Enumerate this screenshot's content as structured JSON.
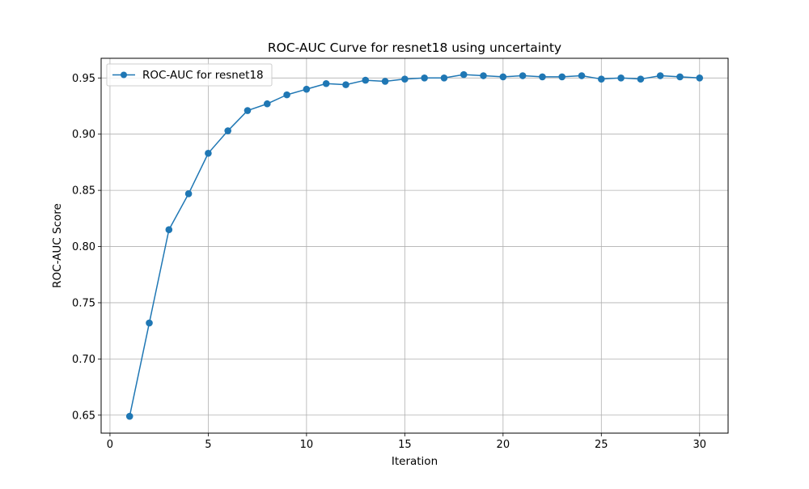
{
  "chart_data": {
    "type": "line",
    "title": "ROC-AUC Curve for resnet18 using uncertainty",
    "xlabel": "Iteration",
    "ylabel": "ROC-AUC Score",
    "xlim": [
      -0.45,
      31.45
    ],
    "ylim": [
      0.634,
      0.9675
    ],
    "xticks": [
      0,
      5,
      10,
      15,
      20,
      25,
      30
    ],
    "xtick_labels": [
      "0",
      "5",
      "10",
      "15",
      "20",
      "25",
      "30"
    ],
    "yticks": [
      0.65,
      0.7,
      0.75,
      0.8,
      0.85,
      0.9,
      0.95
    ],
    "ytick_labels": [
      "0.65",
      "0.70",
      "0.75",
      "0.80",
      "0.85",
      "0.90",
      "0.95"
    ],
    "grid": true,
    "legend_position": "top-left",
    "series": [
      {
        "name": "ROC-AUC for resnet18",
        "color": "#1f77b4",
        "marker": "circle",
        "x": [
          1,
          2,
          3,
          4,
          5,
          6,
          7,
          8,
          9,
          10,
          11,
          12,
          13,
          14,
          15,
          16,
          17,
          18,
          19,
          20,
          21,
          22,
          23,
          24,
          25,
          26,
          27,
          28,
          29,
          30
        ],
        "y": [
          0.649,
          0.732,
          0.815,
          0.847,
          0.883,
          0.903,
          0.921,
          0.927,
          0.935,
          0.94,
          0.945,
          0.944,
          0.948,
          0.947,
          0.949,
          0.95,
          0.95,
          0.953,
          0.952,
          0.951,
          0.952,
          0.951,
          0.951,
          0.952,
          0.949,
          0.95,
          0.949,
          0.952,
          0.951,
          0.95
        ]
      }
    ]
  }
}
